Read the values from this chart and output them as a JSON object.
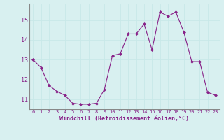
{
  "x": [
    0,
    1,
    2,
    3,
    4,
    5,
    6,
    7,
    8,
    9,
    10,
    11,
    12,
    13,
    14,
    15,
    16,
    17,
    18,
    19,
    20,
    21,
    22,
    23
  ],
  "y": [
    13.0,
    12.6,
    11.7,
    11.4,
    11.2,
    10.8,
    10.75,
    10.75,
    10.8,
    11.5,
    13.2,
    13.3,
    14.3,
    14.3,
    14.8,
    13.5,
    15.4,
    15.2,
    15.4,
    14.4,
    12.9,
    12.9,
    11.35,
    11.2
  ],
  "line_color": "#882288",
  "marker": "D",
  "marker_size": 2,
  "bg_color": "#d8f0f0",
  "grid_color": "#b8dada",
  "xlabel": "Windchill (Refroidissement éolien,°C)",
  "xlabel_color": "#882288",
  "tick_color": "#882288",
  "axis_color": "#888888",
  "ylim": [
    10.5,
    15.8
  ],
  "xlim": [
    -0.5,
    23.5
  ],
  "yticks": [
    11,
    12,
    13,
    14,
    15
  ],
  "xticks": [
    0,
    1,
    2,
    3,
    4,
    5,
    6,
    7,
    8,
    9,
    10,
    11,
    12,
    13,
    14,
    15,
    16,
    17,
    18,
    19,
    20,
    21,
    22,
    23
  ],
  "xtick_fontsize": 5.0,
  "ytick_fontsize": 6.0,
  "xlabel_fontsize": 6.0
}
